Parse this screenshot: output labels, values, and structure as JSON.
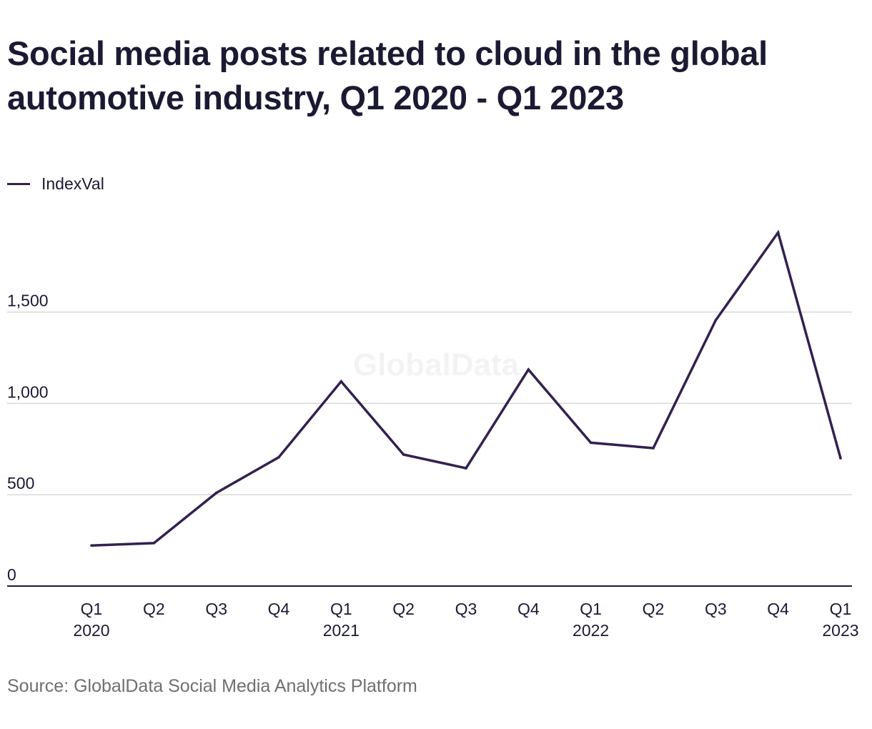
{
  "title": "Social media posts related to cloud in the global automotive industry, Q1 2020 - Q1 2023",
  "source": "Source: GlobalData Social Media Analytics Platform",
  "watermark": "GlobalData",
  "colors": {
    "line": "#33214f",
    "grid": "#d9d9d9",
    "axis": "#1c1a33",
    "text": "#1c1a33",
    "watermark": "#f3f3f5"
  },
  "chart_data": {
    "type": "line",
    "title": "Social media posts related to cloud in the global automotive industry, Q1 2020 - Q1 2023",
    "xlabel": "",
    "ylabel": "",
    "categories": [
      "Q1 2020",
      "Q2 2020",
      "Q3 2020",
      "Q4 2020",
      "Q1 2021",
      "Q2 2021",
      "Q3 2021",
      "Q4 2021",
      "Q1 2022",
      "Q2 2022",
      "Q3 2022",
      "Q4 2022",
      "Q1 2023"
    ],
    "tick_labels": [
      [
        "Q1",
        "2020"
      ],
      [
        "Q2",
        ""
      ],
      [
        "Q3",
        ""
      ],
      [
        "Q4",
        ""
      ],
      [
        "Q1",
        "2021"
      ],
      [
        "Q2",
        ""
      ],
      [
        "Q3",
        ""
      ],
      [
        "Q4",
        ""
      ],
      [
        "Q1",
        "2022"
      ],
      [
        "Q2",
        ""
      ],
      [
        "Q3",
        ""
      ],
      [
        "Q4",
        ""
      ],
      [
        "Q1",
        "2023"
      ]
    ],
    "series": [
      {
        "name": "IndexVal",
        "values": [
          222,
          235,
          510,
          705,
          1120,
          720,
          645,
          1185,
          785,
          755,
          1455,
          1935,
          700
        ]
      }
    ],
    "yticks": [
      0,
      500,
      1000,
      1500
    ],
    "ytick_labels": [
      "0",
      "500",
      "1,000",
      "1,500"
    ],
    "ylim": [
      0,
      1935
    ],
    "grid": true,
    "legend_position": "top-left"
  }
}
